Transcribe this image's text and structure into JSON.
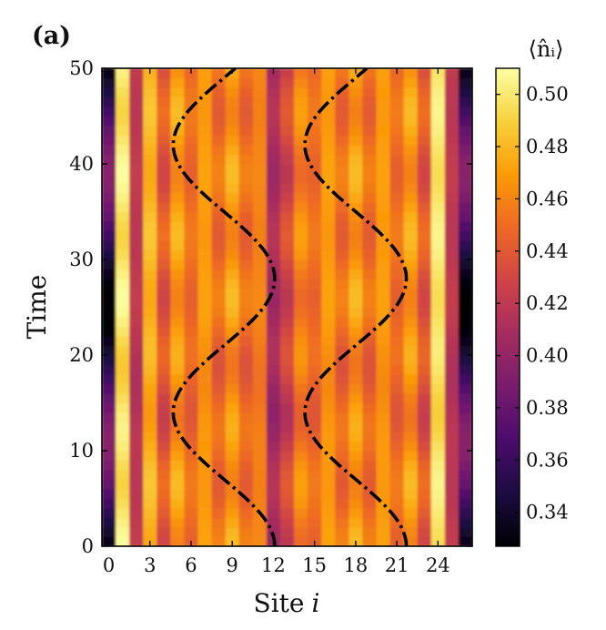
{
  "chart_data": {
    "type": "heatmap",
    "panel_label": "(a)",
    "xlabel": "Site",
    "xlabel_symbol": "i",
    "ylabel": "Time",
    "colorbar_label": "⟨n̂ᵢ⟩",
    "x_range": [
      -0.5,
      26.5
    ],
    "y_range": [
      0,
      50
    ],
    "x_ticks": [
      0,
      3,
      6,
      9,
      12,
      15,
      18,
      21,
      24
    ],
    "y_ticks": [
      0,
      10,
      20,
      30,
      40,
      50
    ],
    "colorbar_range": [
      0.327,
      0.51
    ],
    "colorbar_ticks": [
      "0.34",
      "0.36",
      "0.38",
      "0.40",
      "0.42",
      "0.44",
      "0.46",
      "0.48",
      "0.50"
    ],
    "colormap": "inferno",
    "colormap_stops": [
      "#000004",
      "#1b0c41",
      "#4a0c6b",
      "#781c6d",
      "#a52c60",
      "#cf4446",
      "#ed6925",
      "#fb9b06",
      "#f7d13d",
      "#fcffa4"
    ],
    "site_profile": {
      "sites": [
        0,
        1,
        2,
        3,
        4,
        5,
        6,
        7,
        8,
        9,
        10,
        11,
        12,
        13,
        14,
        15,
        16,
        17,
        18,
        19,
        20,
        21,
        22,
        23,
        24,
        25,
        26
      ],
      "density": [
        0.36,
        0.5,
        0.42,
        0.48,
        0.44,
        0.47,
        0.45,
        0.47,
        0.45,
        0.47,
        0.45,
        0.46,
        0.41,
        0.43,
        0.46,
        0.45,
        0.47,
        0.45,
        0.47,
        0.45,
        0.47,
        0.45,
        0.47,
        0.44,
        0.5,
        0.42,
        0.36
      ]
    },
    "overlay_curves": [
      {
        "name": "left-boundary",
        "style": "dash-dot",
        "color": "#000000",
        "center_site": 8.4,
        "amplitude_sites": 3.7,
        "period": 28,
        "start_time": 0
      },
      {
        "name": "right-boundary",
        "style": "dash-dot",
        "color": "#000000",
        "center_site": 18.0,
        "amplitude_sites": 3.7,
        "period": 28,
        "start_time": 0
      }
    ]
  }
}
